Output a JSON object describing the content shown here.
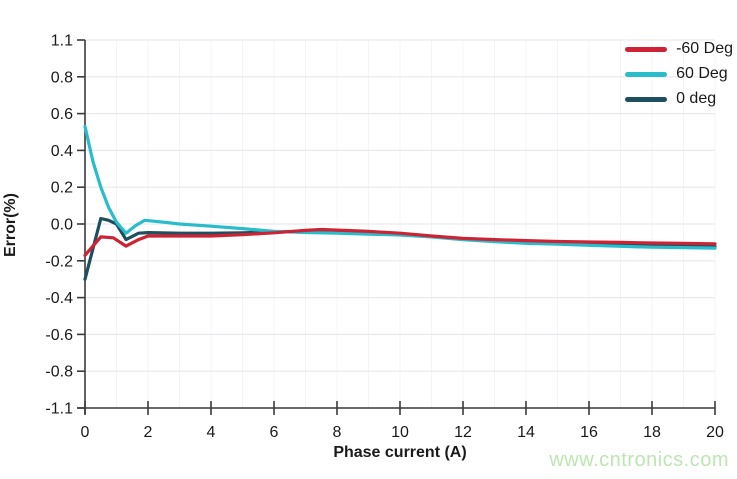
{
  "watermark": {
    "text": "www.cntronics.com",
    "color": "#bce6b2"
  },
  "colors": {
    "axis": "#3a3a3a",
    "tick_label": "#1a1a1a",
    "grid_major": "#e8e9ee",
    "grid_minor": "#f4f4f7",
    "background": "#ffffff"
  },
  "chart_data": {
    "type": "line",
    "title": "",
    "xlabel": "Phase current (A)",
    "ylabel": "Error(%)",
    "xlim": [
      0,
      20
    ],
    "x_ticks": [
      0,
      2,
      4,
      6,
      8,
      10,
      12,
      14,
      16,
      18,
      20
    ],
    "y_tick_labels": [
      "1.1",
      "0.8",
      "0.6",
      "0.4",
      "0.2",
      "0.0",
      "-0.2",
      "-0.4",
      "-0.6",
      "-0.8",
      "-1.1"
    ],
    "y_units_per_step": 0.2,
    "grid": true,
    "legend_position": "top-right",
    "series": [
      {
        "name": "-60 Deg",
        "color": "#cd2334",
        "points": [
          [
            0,
            -0.17
          ],
          [
            0.5,
            -0.07
          ],
          [
            0.9,
            -0.075
          ],
          [
            1.3,
            -0.12
          ],
          [
            1.7,
            -0.085
          ],
          [
            2,
            -0.065
          ],
          [
            3,
            -0.065
          ],
          [
            4,
            -0.065
          ],
          [
            5,
            -0.058
          ],
          [
            6,
            -0.048
          ],
          [
            7,
            -0.035
          ],
          [
            7.5,
            -0.03
          ],
          [
            8,
            -0.033
          ],
          [
            9,
            -0.04
          ],
          [
            10,
            -0.05
          ],
          [
            11,
            -0.065
          ],
          [
            12,
            -0.078
          ],
          [
            13,
            -0.085
          ],
          [
            14,
            -0.09
          ],
          [
            15,
            -0.095
          ],
          [
            16,
            -0.098
          ],
          [
            17,
            -0.1
          ],
          [
            18,
            -0.103
          ],
          [
            19,
            -0.105
          ],
          [
            20,
            -0.108
          ]
        ]
      },
      {
        "name": "60 Deg",
        "color": "#29bccb",
        "points": [
          [
            0,
            0.53
          ],
          [
            0.25,
            0.34
          ],
          [
            0.5,
            0.2
          ],
          [
            0.75,
            0.09
          ],
          [
            1,
            0.01
          ],
          [
            1.3,
            -0.05
          ],
          [
            1.6,
            -0.01
          ],
          [
            1.9,
            0.02
          ],
          [
            2.5,
            0.01
          ],
          [
            3,
            0.0
          ],
          [
            4,
            -0.012
          ],
          [
            5,
            -0.025
          ],
          [
            6,
            -0.04
          ],
          [
            7,
            -0.046
          ],
          [
            8,
            -0.05
          ],
          [
            9,
            -0.055
          ],
          [
            10,
            -0.06
          ],
          [
            11,
            -0.07
          ],
          [
            12,
            -0.085
          ],
          [
            13,
            -0.096
          ],
          [
            14,
            -0.105
          ],
          [
            15,
            -0.11
          ],
          [
            16,
            -0.116
          ],
          [
            17,
            -0.121
          ],
          [
            18,
            -0.126
          ],
          [
            19,
            -0.128
          ],
          [
            20,
            -0.131
          ]
        ]
      },
      {
        "name": "0 deg",
        "color": "#1d4f5e",
        "points": [
          [
            0,
            -0.3
          ],
          [
            0.5,
            0.03
          ],
          [
            0.75,
            0.02
          ],
          [
            1,
            0.0
          ],
          [
            1.3,
            -0.085
          ],
          [
            1.7,
            -0.05
          ],
          [
            2,
            -0.047
          ],
          [
            3,
            -0.05
          ],
          [
            4,
            -0.05
          ],
          [
            5,
            -0.048
          ],
          [
            6,
            -0.044
          ],
          [
            7,
            -0.04
          ],
          [
            8,
            -0.043
          ],
          [
            9,
            -0.048
          ],
          [
            10,
            -0.055
          ],
          [
            11,
            -0.068
          ],
          [
            12,
            -0.08
          ],
          [
            13,
            -0.09
          ],
          [
            14,
            -0.098
          ],
          [
            15,
            -0.104
          ],
          [
            16,
            -0.109
          ],
          [
            17,
            -0.113
          ],
          [
            18,
            -0.117
          ],
          [
            19,
            -0.12
          ],
          [
            20,
            -0.123
          ]
        ]
      }
    ]
  }
}
